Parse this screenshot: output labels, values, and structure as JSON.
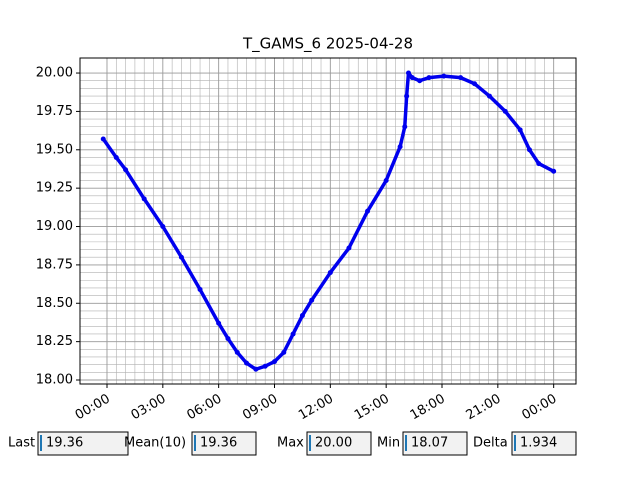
{
  "chart_data": {
    "type": "line",
    "title": "T_GAMS_6 2025-04-28",
    "x": [
      -0.2,
      0.5,
      1.0,
      2.0,
      3.0,
      4.0,
      5.0,
      6.0,
      6.5,
      7.0,
      7.5,
      8.0,
      8.5,
      9.0,
      9.5,
      10.0,
      10.5,
      11.0,
      12.0,
      13.0,
      14.0,
      15.0,
      15.75,
      16.0,
      16.1,
      16.2,
      16.4,
      16.8,
      17.3,
      18.1,
      19.0,
      19.75,
      20.55,
      21.4,
      22.2,
      22.7,
      23.2,
      24.0
    ],
    "series": [
      {
        "name": "T_GAMS_6",
        "color": "#0000ee",
        "values": [
          19.57,
          19.45,
          19.37,
          19.18,
          19.0,
          18.8,
          18.59,
          18.37,
          18.27,
          18.18,
          18.11,
          18.07,
          18.09,
          18.12,
          18.18,
          18.3,
          18.42,
          18.52,
          18.7,
          18.86,
          19.1,
          19.3,
          19.52,
          19.65,
          19.85,
          20.0,
          19.97,
          19.95,
          19.97,
          19.98,
          19.97,
          19.93,
          19.85,
          19.75,
          19.63,
          19.5,
          19.41,
          19.36
        ]
      }
    ],
    "xlim": [
      -1.45,
      25.2
    ],
    "xticks": [
      {
        "value": 0,
        "label": "00:00"
      },
      {
        "value": 3,
        "label": "03:00"
      },
      {
        "value": 6,
        "label": "06:00"
      },
      {
        "value": 9,
        "label": "09:00"
      },
      {
        "value": 12,
        "label": "12:00"
      },
      {
        "value": 15,
        "label": "15:00"
      },
      {
        "value": 18,
        "label": "18:00"
      },
      {
        "value": 21,
        "label": "21:00"
      },
      {
        "value": 24,
        "label": "00:00"
      }
    ],
    "ylim": [
      17.974,
      20.098
    ],
    "yticks": [
      {
        "value": 18,
        "label": "18.00"
      },
      {
        "value": 18.25,
        "label": "18.25"
      },
      {
        "value": 18.5,
        "label": "18.50"
      },
      {
        "value": 18.75,
        "label": "18.75"
      },
      {
        "value": 19,
        "label": "19.00"
      },
      {
        "value": 19.25,
        "label": "19.25"
      },
      {
        "value": 19.5,
        "label": "19.50"
      },
      {
        "value": 19.75,
        "label": "19.75"
      },
      {
        "value": 20,
        "label": "20.00"
      }
    ],
    "grid": true
  },
  "widgets": [
    {
      "label": "Last",
      "value": "19.36"
    },
    {
      "label": "Mean(10)",
      "value": "19.36"
    },
    {
      "label": "Max",
      "value": "20.00"
    },
    {
      "label": "Min",
      "value": "18.07"
    },
    {
      "label": "Delta",
      "value": "1.934"
    }
  ]
}
